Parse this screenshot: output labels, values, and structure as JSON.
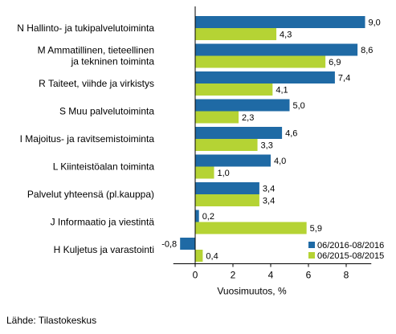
{
  "chart_data": {
    "type": "bar",
    "orientation": "horizontal",
    "categories": [
      "N Hallinto- ja tukipalvelutoiminta",
      "M Ammatillinen, tieteellinen\nja tekninen toiminta",
      "R Taiteet, viihde ja virkistys",
      "S Muu palvelutoiminta",
      "I Majoitus- ja ravitsemistoiminta",
      "L Kiinteistöalan toiminta",
      "Palvelut yhteensä (pl.kauppa)",
      "J Informaatio ja viestintä",
      "H Kuljetus ja varastointi"
    ],
    "series": [
      {
        "name": "06/2016-08/2016",
        "color": "#1f6aa5",
        "values": [
          9.0,
          8.6,
          7.4,
          5.0,
          4.6,
          4.0,
          3.4,
          0.2,
          -0.8
        ],
        "labels": [
          "9,0",
          "8,6",
          "7,4",
          "5,0",
          "4,6",
          "4,0",
          "3,4",
          "0,2",
          "-0,8"
        ]
      },
      {
        "name": "06/2015-08/2015",
        "color": "#b5d334",
        "values": [
          4.3,
          6.9,
          4.1,
          2.3,
          3.3,
          1.0,
          3.4,
          5.9,
          0.4
        ],
        "labels": [
          "4,3",
          "6,9",
          "4,1",
          "2,3",
          "3,3",
          "1,0",
          "3,4",
          "5,9",
          "0,4"
        ]
      }
    ],
    "xlabel": "Vuosimuutos, %",
    "xlim": [
      -1.5,
      9.5
    ],
    "xticks": [
      0,
      2,
      4,
      6,
      8
    ],
    "grid": false,
    "legend_position": "bottom-right"
  },
  "source": "Lähde: Tilastokeskus"
}
